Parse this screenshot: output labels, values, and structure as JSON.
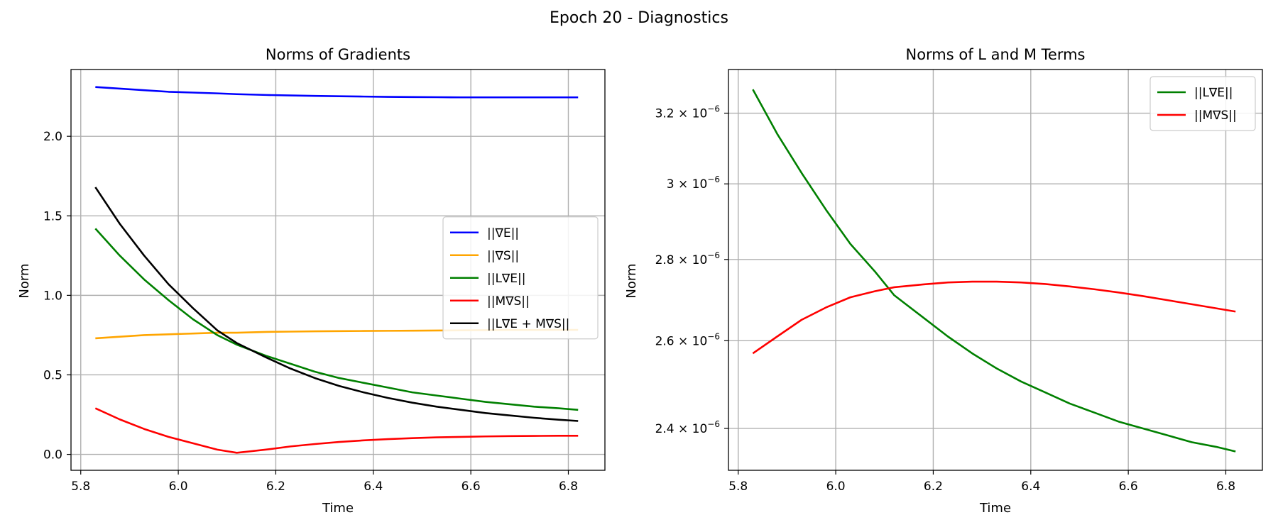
{
  "figure": {
    "suptitle": "Epoch 20 - Diagnostics"
  },
  "chart_data": [
    {
      "type": "line",
      "title": "Norms of Gradients",
      "xlabel": "Time",
      "ylabel": "Norm",
      "xlim": [
        5.78,
        6.875
      ],
      "ylim": [
        -0.1,
        2.42
      ],
      "xticks": [
        5.8,
        6.0,
        6.2,
        6.4,
        6.6,
        6.8
      ],
      "xtick_labels": [
        "5.8",
        "6.0",
        "6.2",
        "6.4",
        "6.6",
        "6.8"
      ],
      "yticks": [
        0.0,
        0.5,
        1.0,
        1.5,
        2.0
      ],
      "ytick_labels": [
        "0.0",
        "0.5",
        "1.0",
        "1.5",
        "2.0"
      ],
      "y_scale": "linear",
      "grid": true,
      "legend_position": "center-right",
      "x": [
        5.83,
        5.88,
        5.93,
        5.98,
        6.03,
        6.08,
        6.12,
        6.18,
        6.23,
        6.28,
        6.33,
        6.38,
        6.43,
        6.48,
        6.53,
        6.58,
        6.63,
        6.68,
        6.73,
        6.78,
        6.82
      ],
      "series": [
        {
          "name": "||∇E||",
          "color": "#0000ff",
          "values": [
            2.31,
            2.3,
            2.29,
            2.28,
            2.275,
            2.27,
            2.265,
            2.26,
            2.257,
            2.254,
            2.252,
            2.25,
            2.248,
            2.247,
            2.246,
            2.245,
            2.245,
            2.245,
            2.245,
            2.245,
            2.245
          ]
        },
        {
          "name": "||∇S||",
          "color": "#ffa500",
          "values": [
            0.73,
            0.74,
            0.75,
            0.755,
            0.76,
            0.765,
            0.765,
            0.77,
            0.772,
            0.774,
            0.775,
            0.776,
            0.777,
            0.778,
            0.779,
            0.78,
            0.781,
            0.782,
            0.782,
            0.783,
            0.783
          ]
        },
        {
          "name": "||L∇E||",
          "color": "#008000",
          "values": [
            1.42,
            1.25,
            1.1,
            0.97,
            0.85,
            0.75,
            0.69,
            0.62,
            0.57,
            0.52,
            0.48,
            0.45,
            0.42,
            0.39,
            0.37,
            0.35,
            0.33,
            0.315,
            0.3,
            0.29,
            0.28
          ]
        },
        {
          "name": "||M∇S||",
          "color": "#ff0000",
          "values": [
            0.29,
            0.22,
            0.16,
            0.11,
            0.07,
            0.03,
            0.01,
            0.03,
            0.05,
            0.065,
            0.078,
            0.088,
            0.096,
            0.102,
            0.107,
            0.11,
            0.113,
            0.115,
            0.116,
            0.117,
            0.117
          ]
        },
        {
          "name": "||L∇E + M∇S||",
          "color": "#000000",
          "values": [
            1.68,
            1.45,
            1.25,
            1.07,
            0.92,
            0.78,
            0.7,
            0.61,
            0.54,
            0.48,
            0.43,
            0.39,
            0.355,
            0.325,
            0.3,
            0.28,
            0.26,
            0.245,
            0.23,
            0.218,
            0.21
          ]
        }
      ]
    },
    {
      "type": "line",
      "title": "Norms of L and M Terms",
      "xlabel": "Time",
      "ylabel": "Norm",
      "xlim": [
        5.78,
        6.875
      ],
      "ylim": [
        2.31e-06,
        3.33e-06
      ],
      "xticks": [
        5.8,
        6.0,
        6.2,
        6.4,
        6.6,
        6.8
      ],
      "xtick_labels": [
        "5.8",
        "6.0",
        "6.2",
        "6.4",
        "6.6",
        "6.8"
      ],
      "yticks": [
        2.4e-06,
        2.6e-06,
        2.8e-06,
        3e-06,
        3.2e-06
      ],
      "ytick_labels": [
        {
          "mant": "2.4 × 10",
          "exp": "−6"
        },
        {
          "mant": "2.6 × 10",
          "exp": "−6"
        },
        {
          "mant": "2.8 × 10",
          "exp": "−6"
        },
        {
          "mant": "3 × 10",
          "exp": "−6"
        },
        {
          "mant": "3.2 × 10",
          "exp": "−6"
        }
      ],
      "y_scale": "log",
      "grid": true,
      "legend_position": "top-right",
      "x": [
        5.83,
        5.88,
        5.93,
        5.98,
        6.03,
        6.08,
        6.12,
        6.18,
        6.23,
        6.28,
        6.33,
        6.38,
        6.43,
        6.48,
        6.53,
        6.58,
        6.63,
        6.68,
        6.73,
        6.78,
        6.82
      ],
      "series": [
        {
          "name": "||L∇E||",
          "color": "#008000",
          "values": [
            3.27e-06,
            3.14e-06,
            3.03e-06,
            2.93e-06,
            2.84e-06,
            2.77e-06,
            2.71e-06,
            2.655e-06,
            2.61e-06,
            2.57e-06,
            2.535e-06,
            2.505e-06,
            2.48e-06,
            2.455e-06,
            2.435e-06,
            2.415e-06,
            2.4e-06,
            2.385e-06,
            2.37e-06,
            2.36e-06,
            2.35e-06
          ]
        },
        {
          "name": "||M∇S||",
          "color": "#ff0000",
          "values": [
            2.57e-06,
            2.61e-06,
            2.65e-06,
            2.68e-06,
            2.705e-06,
            2.72e-06,
            2.73e-06,
            2.737e-06,
            2.742e-06,
            2.744e-06,
            2.744e-06,
            2.742e-06,
            2.738e-06,
            2.732e-06,
            2.725e-06,
            2.717e-06,
            2.708e-06,
            2.698e-06,
            2.688e-06,
            2.678e-06,
            2.67e-06
          ]
        }
      ]
    }
  ]
}
